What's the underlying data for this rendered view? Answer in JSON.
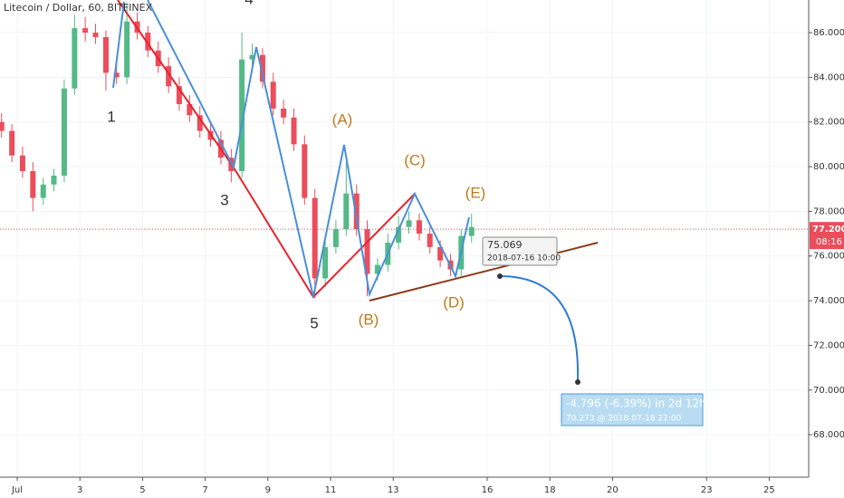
{
  "chart_data": {
    "type": "candlestick",
    "title": "Litecoin / Dollar, 60, BITFINEX",
    "up_color": "#53b987",
    "down_color": "#eb4d5c",
    "x": [
      0.5,
      0.83,
      1.17,
      1.5,
      1.83,
      2.17,
      2.5,
      2.83,
      3.17,
      3.5,
      3.83,
      4.17,
      4.5,
      4.83,
      5.17,
      5.5,
      5.83,
      6.17,
      6.5,
      6.83,
      7.17,
      7.5,
      7.83,
      8.17,
      8.5,
      8.83,
      9.17,
      9.5,
      9.83,
      10.17,
      10.5,
      10.83,
      11.17,
      11.5,
      11.83,
      12.17,
      12.5,
      12.83,
      13.17,
      13.5,
      13.83,
      14.17,
      14.5,
      14.83,
      15.17,
      15.5
    ],
    "open": [
      82.0,
      81.6,
      80.5,
      79.8,
      78.6,
      79.2,
      79.6,
      83.5,
      86.2,
      86.0,
      85.8,
      84.2,
      84.0,
      86.5,
      86.0,
      85.2,
      84.5,
      83.6,
      82.8,
      82.3,
      81.6,
      81.2,
      80.4,
      79.8,
      84.8,
      85.0,
      83.8,
      82.6,
      82.2,
      81.0,
      78.6,
      75.0,
      76.4,
      77.2,
      78.8,
      77.2,
      75.2,
      75.6,
      76.6,
      77.3,
      77.6,
      77.0,
      76.4,
      75.8,
      75.4,
      76.9
    ],
    "high": [
      82.4,
      81.9,
      80.9,
      80.2,
      79.5,
      79.9,
      83.9,
      86.8,
      86.7,
      86.4,
      86.1,
      84.6,
      87.3,
      86.9,
      86.3,
      85.6,
      84.9,
      84.0,
      83.2,
      82.7,
      82.0,
      81.6,
      80.8,
      86.0,
      85.5,
      85.3,
      84.2,
      83.0,
      82.6,
      81.4,
      79.0,
      76.8,
      77.6,
      80.2,
      79.2,
      77.6,
      75.9,
      77.0,
      77.8,
      78.0,
      77.9,
      77.3,
      76.7,
      76.1,
      77.2,
      77.9
    ],
    "low": [
      81.3,
      80.2,
      79.5,
      78.0,
      78.3,
      78.9,
      79.3,
      83.2,
      85.6,
      85.5,
      83.4,
      83.7,
      83.7,
      85.7,
      84.9,
      84.2,
      83.3,
      82.5,
      82.0,
      81.3,
      80.9,
      80.1,
      79.3,
      79.5,
      84.5,
      83.5,
      82.3,
      81.9,
      80.7,
      78.3,
      74.1,
      74.6,
      76.1,
      76.9,
      76.9,
      74.2,
      74.9,
      75.3,
      76.3,
      77.0,
      76.7,
      76.1,
      75.5,
      75.1,
      75.1,
      76.6
    ],
    "close": [
      81.6,
      80.5,
      79.8,
      78.6,
      79.2,
      79.6,
      83.5,
      86.2,
      86.0,
      85.8,
      84.2,
      84.0,
      86.5,
      86.0,
      85.2,
      84.5,
      83.6,
      82.8,
      82.3,
      81.6,
      81.2,
      80.4,
      79.8,
      84.8,
      85.0,
      83.8,
      82.6,
      82.2,
      81.0,
      78.6,
      75.0,
      76.4,
      77.2,
      78.8,
      77.2,
      75.2,
      75.6,
      76.6,
      77.3,
      77.6,
      77.0,
      76.4,
      75.8,
      75.4,
      76.9,
      77.3
    ],
    "xlim": [
      0.45,
      26.26
    ],
    "ylim": [
      66.1,
      87.46
    ],
    "xticks": [
      {
        "value": 1,
        "label": "Jul"
      },
      3,
      5,
      7,
      9,
      11,
      13,
      16,
      18,
      20,
      23,
      25
    ],
    "yticks": [
      {
        "value": 68,
        "label": "68.000"
      },
      {
        "value": 70,
        "label": "70.000"
      },
      {
        "value": 72,
        "label": "72.000"
      },
      {
        "value": 74,
        "label": "74.000"
      },
      {
        "value": 76,
        "label": "76.000"
      },
      {
        "value": 78,
        "label": "78.000"
      },
      {
        "value": 80,
        "label": "80.000"
      },
      {
        "value": 82,
        "label": "82.000"
      },
      {
        "value": 84,
        "label": "84.000"
      },
      {
        "value": 86,
        "label": "86.000"
      }
    ],
    "current_price": 77.2,
    "current_price_label": "77.200",
    "countdown": "08:16",
    "wave_labels": [
      "1",
      "3",
      "4",
      "5",
      "(A)",
      "(B)",
      "(C)",
      "(D)",
      "(E)"
    ],
    "tooltip": {
      "price": "75.069",
      "time": "2018-07-16 10:00"
    },
    "projection": {
      "change": "-4.796 (-6.39%) in 2d 12h",
      "target": "70.273 @ 2018-07-18  22:00"
    }
  }
}
